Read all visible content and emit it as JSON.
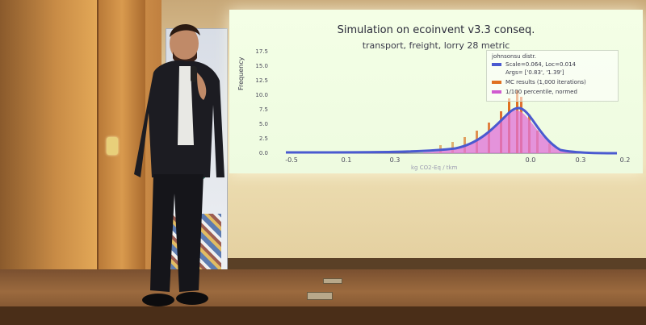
{
  "slide": {
    "title": "Simulation on ecoinvent v3.3 conseq.",
    "subtitle": "transport, freight, lorry 28 metric",
    "ylabel": "Frequency",
    "xlabel": "kg CO2-Eq / tkm",
    "yticks": [
      "17.5",
      "15.0",
      "12.5",
      "10.0",
      "7.5",
      "5.0",
      "2.5",
      "0.0"
    ],
    "xticks": [
      "-0.5",
      "0.1",
      "0.3",
      "0.0",
      "0.3",
      "0.2"
    ],
    "legend": {
      "title": "johnsonsu distr.",
      "fit_line1": "Scale=0.064, Loc=0.014",
      "fit_line2": "Args= ['0.83', '1.39']",
      "mc": "MC results (1,000 iterations)",
      "pct": "1/100 percentile, normed"
    },
    "colors": {
      "fit": "#4a5ad0",
      "mc": "#e07020",
      "pct": "#d05ad0"
    }
  },
  "scene": {
    "colors": {
      "wall": "#e8d4a8",
      "wood": "#c98c46",
      "stage": "#7a5030",
      "jacket": "#1c1c22"
    },
    "icons": [
      "microphone-icon",
      "door-handle-icon",
      "banner-logo-icon"
    ]
  }
}
